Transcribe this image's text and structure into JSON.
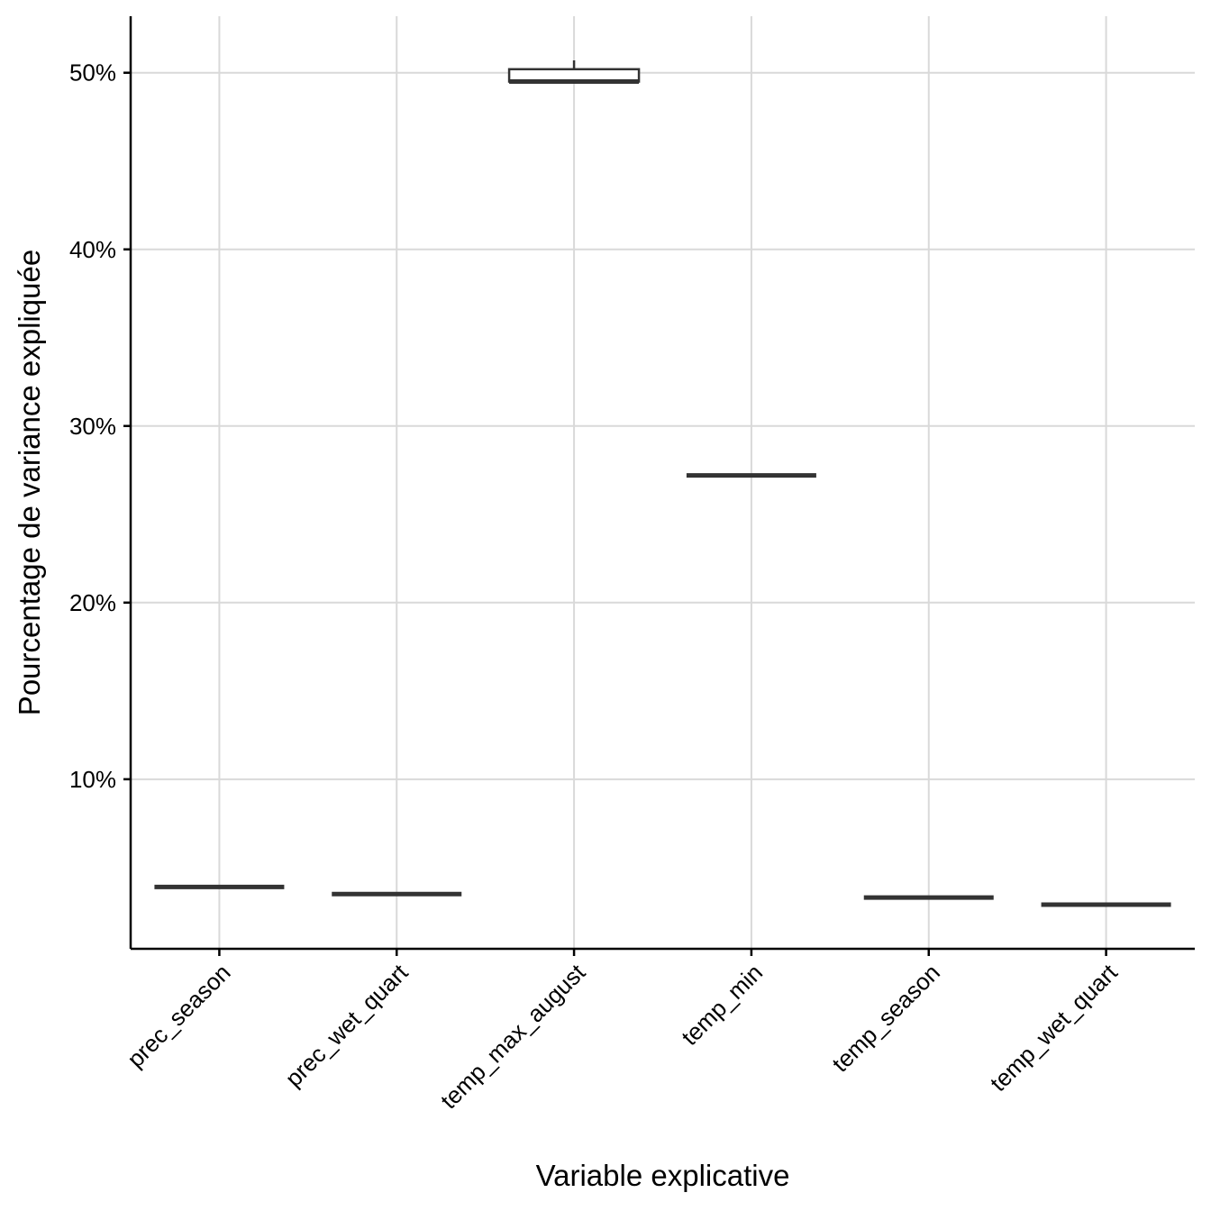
{
  "chart_data": {
    "type": "boxplot",
    "title": "",
    "xlabel": "Variable explicative",
    "ylabel": "Pourcentage de variance expliquée",
    "ylim": [
      0.4,
      53.2
    ],
    "yticks": [
      10,
      20,
      30,
      40,
      50
    ],
    "ytick_labels": [
      "10%",
      "20%",
      "30%",
      "40%",
      "50%"
    ],
    "grid": true,
    "categories": [
      "prec_season",
      "prec_wet_quart",
      "temp_max_august",
      "temp_min",
      "temp_season",
      "temp_wet_quart"
    ],
    "boxes": [
      {
        "category": "prec_season",
        "min": 3.9,
        "q1": 3.9,
        "median": 3.9,
        "q3": 3.9,
        "max": 3.9
      },
      {
        "category": "prec_wet_quart",
        "min": 3.5,
        "q1": 3.5,
        "median": 3.5,
        "q3": 3.5,
        "max": 3.5
      },
      {
        "category": "temp_max_august",
        "min": 49.5,
        "q1": 49.5,
        "median": 49.5,
        "q3": 50.2,
        "max": 50.7
      },
      {
        "category": "temp_min",
        "min": 27.2,
        "q1": 27.2,
        "median": 27.2,
        "q3": 27.2,
        "max": 27.2
      },
      {
        "category": "temp_season",
        "min": 3.3,
        "q1": 3.3,
        "median": 3.3,
        "q3": 3.3,
        "max": 3.3
      },
      {
        "category": "temp_wet_quart",
        "min": 2.9,
        "q1": 2.9,
        "median": 2.9,
        "q3": 2.9,
        "max": 2.9
      }
    ]
  }
}
